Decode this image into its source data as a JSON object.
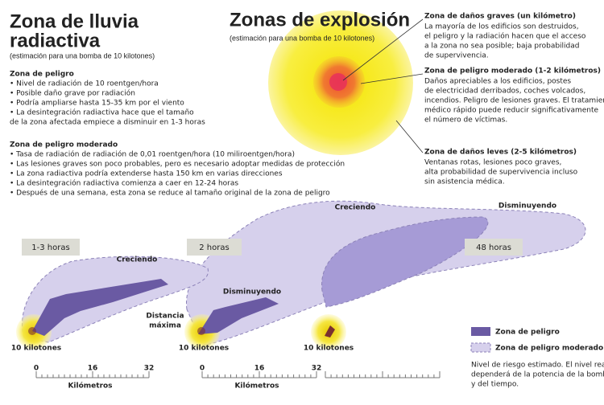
{
  "fallout": {
    "title": [
      "Zona de lluvia",
      "radiactiva"
    ],
    "subtitle": "(estimación para una bomba de 10 kilotones)",
    "danger": {
      "heading": "Zona de peligro",
      "lines": [
        "• Nivel de radiación de 10 roentgen/hora",
        "• Posible daño grave por radiación",
        "• Podría ampliarse hasta 15-35 km por el viento",
        "• La desintegración radiactiva hace que el tamaño",
        "  de la zona afectada empiece a disminuir en 1-3 horas"
      ]
    },
    "moderate": {
      "heading": "Zona de peligro moderado",
      "lines": [
        "• Tasa de radiación de radiación de 0,01 roentgen/hora (10 milirоentgen/hora)",
        "• Las lesiones graves son poco probables, pero es necesario adoptar medidas de protección",
        "• La zona radiactiva podría extenderse hasta 150 km en varias direcciones",
        "• La desintegración radiactiva comienza a caer en 12-24 horas",
        "• Después de una semana, esta zona se reduce al tamaño original de la zona de peligro"
      ]
    }
  },
  "explosion": {
    "title": "Zonas de explosión",
    "subtitle": "(estimación para una bomba de 10 kilotones)",
    "zones": [
      {
        "heading": "Zona de daños graves (un kilómetro)",
        "lines": [
          "La mayoría de los edificios son destruidos,",
          "el peligro y la radiación hacen que el acceso",
          "a la zona no sea posible; baja probabilidad",
          "de supervivencia."
        ]
      },
      {
        "heading": "Zona de peligro moderado (1-2 kilómetros)",
        "lines": [
          "Daños apreciables a los edificios, postes",
          "de electricidad derribados, coches volcados,",
          "incendios. Peligro de lesiones graves. El tratamiento",
          "médico rápido puede reducir significativamente",
          "el número de víctimas."
        ]
      },
      {
        "heading": "Zona de daños leves (2-5 kilómetros)",
        "lines": [
          "Ventanas rotas, lesiones poco graves,",
          "alta probabilidad de supervivencia incluso",
          "sin asistencia médica."
        ]
      }
    ]
  },
  "panels": {
    "times": [
      "1-3 horas",
      "2 horas",
      "48 horas"
    ],
    "labels": [
      "Creciendo",
      "Distancia",
      "máxima",
      "Disminuyendo",
      "Creciendo",
      "Disminuyendo"
    ],
    "sources": [
      "10 kilotones",
      "10 kilotones",
      "10 kilotones"
    ],
    "scales": [
      {
        "ticks": [
          0,
          16,
          32
        ],
        "unit": "Kilómetros"
      },
      {
        "ticks": [
          0,
          16,
          32
        ],
        "unit": "Kilómetros"
      }
    ]
  },
  "legend": [
    "Zona de peligro",
    "Zona de peligro moderado"
  ],
  "note": [
    "Nivel de riesgo estimado. El nivel real",
    "dependerá de la potencia de la bomba",
    "y del tiempo."
  ]
}
